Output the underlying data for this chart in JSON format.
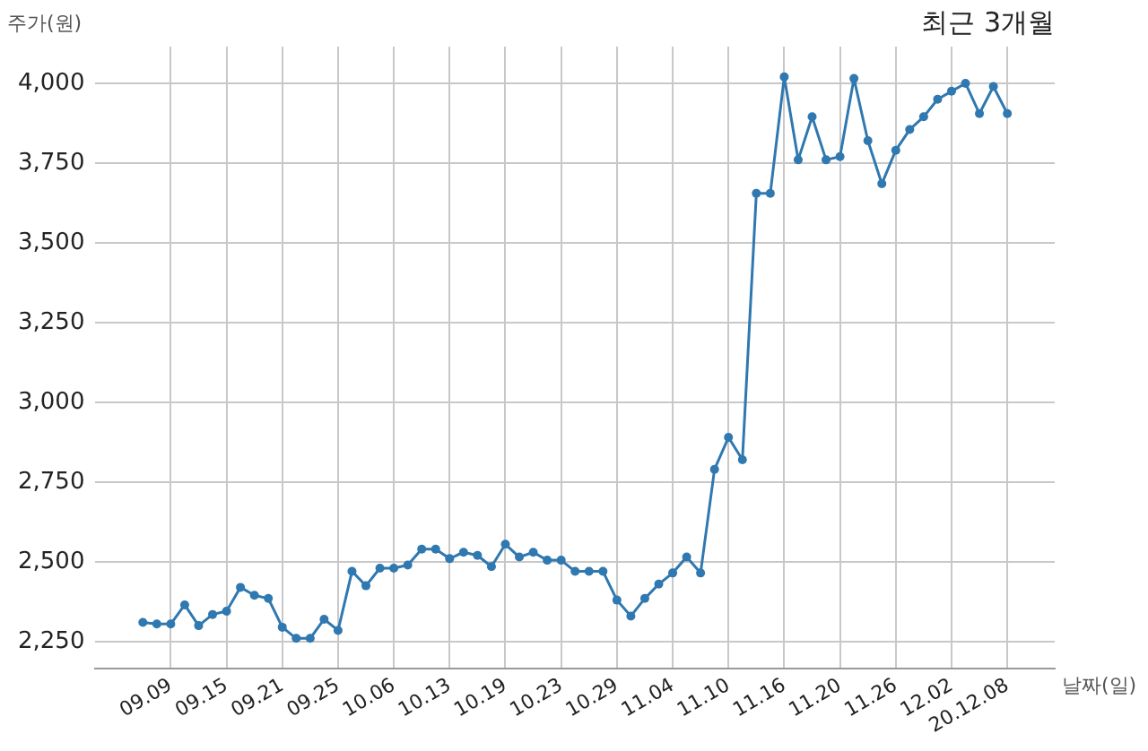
{
  "chart_data": {
    "type": "line",
    "title": "최근 3개월",
    "xlabel": "날짜(일)",
    "ylabel": "주가(원)",
    "categories": [
      null,
      null,
      "09.09",
      null,
      null,
      null,
      "09.15",
      null,
      null,
      null,
      "09.21",
      null,
      null,
      null,
      "09.25",
      null,
      null,
      null,
      "10.06",
      null,
      null,
      null,
      "10.13",
      null,
      null,
      null,
      "10.19",
      null,
      null,
      null,
      "10.23",
      null,
      null,
      null,
      "10.29",
      null,
      null,
      null,
      "11.04",
      null,
      null,
      null,
      "11.10",
      null,
      null,
      null,
      "11.16",
      null,
      null,
      null,
      "11.20",
      null,
      null,
      null,
      "11.26",
      null,
      null,
      null,
      "12.02",
      null,
      null,
      null,
      "20.12.08"
    ],
    "values": [
      2310,
      2305,
      2305,
      2365,
      2300,
      2335,
      2345,
      2420,
      2395,
      2385,
      2295,
      2260,
      2260,
      2320,
      2285,
      2470,
      2425,
      2480,
      2480,
      2490,
      2540,
      2540,
      2510,
      2530,
      2520,
      2485,
      2555,
      2515,
      2530,
      2505,
      2505,
      2470,
      2470,
      2470,
      2380,
      2330,
      2385,
      2430,
      2465,
      2515,
      2465,
      2790,
      2890,
      2820,
      3655,
      3655,
      4020,
      3760,
      3895,
      3760,
      3770,
      4015,
      3820,
      3685,
      3790,
      3855,
      3895,
      3950,
      3975,
      4000,
      3905,
      3990,
      3905
    ],
    "color": "#2f78b0",
    "ylim": [
      2165,
      4115
    ],
    "yticks": [
      {
        "value": 2250,
        "label": "2,250"
      },
      {
        "value": 2500,
        "label": "2,500"
      },
      {
        "value": 2750,
        "label": "2,750"
      },
      {
        "value": 3000,
        "label": "3,000"
      },
      {
        "value": 3250,
        "label": "3,250"
      },
      {
        "value": 3500,
        "label": "3,500"
      },
      {
        "value": 3750,
        "label": "3,750"
      },
      {
        "value": 4000,
        "label": "4,000"
      }
    ],
    "grid": true,
    "marker": "circle",
    "line_style": "solid"
  }
}
